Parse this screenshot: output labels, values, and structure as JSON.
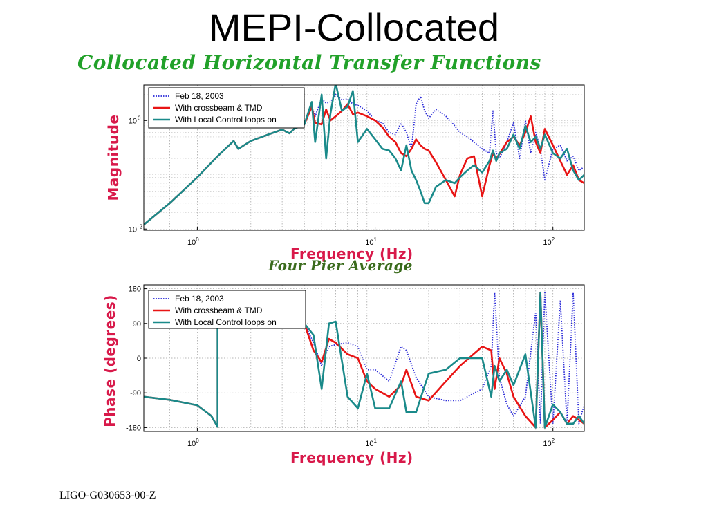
{
  "slide": {
    "title": "MEPI-Collocated",
    "subtitle": "Collocated Horizontal Transfer Functions",
    "mid_title": "Four Pier Average",
    "footer": "LIGO-G030653-00-Z"
  },
  "colors": {
    "feb": "#2a2ad8",
    "crossbeam": "#e81414",
    "local": "#1a8a8a",
    "axis_label": "#d8194a",
    "subtitle": "#22a12a"
  },
  "chart_data": [
    {
      "type": "line",
      "title": "",
      "xlabel": "Frequency (Hz)",
      "ylabel": "Magnitude",
      "xscale": "log",
      "yscale": "log",
      "xlim": [
        0.5,
        150
      ],
      "ylim": [
        0.0095,
        4.5
      ],
      "xticks": [
        {
          "v": 1,
          "base": "10",
          "exp": "0"
        },
        {
          "v": 10,
          "base": "10",
          "exp": "1"
        },
        {
          "v": 100,
          "base": "10",
          "exp": "2"
        }
      ],
      "yticks": [
        {
          "v": 1,
          "base": "10",
          "exp": "0"
        },
        {
          "v": 0.01,
          "base": "10",
          "exp": "-2"
        }
      ],
      "grid": true,
      "legend_position": "top-left",
      "series": [
        {
          "name": "Feb 18, 2003",
          "style": "dotted",
          "color": "#2a2ad8",
          "x": [
            0.5,
            0.7,
            1,
            1.3,
            1.6,
            1.7,
            2,
            2.5,
            3,
            3.3,
            3.5,
            4,
            4.4,
            4.6,
            5,
            5.3,
            5.6,
            6,
            6.5,
            7,
            7.5,
            8,
            9,
            10,
            11,
            12,
            13,
            14,
            15,
            16,
            17,
            18,
            19,
            20,
            22,
            25,
            28,
            30,
            33,
            36,
            40,
            44,
            46,
            48,
            50,
            55,
            60,
            65,
            70,
            75,
            80,
            85,
            90,
            100,
            110,
            120,
            130,
            140,
            150
          ],
          "y": [
            0.012,
            0.03,
            0.09,
            0.22,
            0.42,
            0.3,
            0.42,
            0.55,
            0.68,
            0.58,
            0.7,
            0.85,
            1.8,
            1.2,
            2.5,
            2.1,
            2.2,
            3.0,
            2.4,
            2.5,
            2.0,
            1.9,
            1.5,
            1.0,
            0.9,
            0.6,
            0.55,
            0.9,
            0.6,
            0.3,
            2.0,
            2.8,
            1.5,
            1.1,
            1.6,
            1.2,
            0.8,
            0.6,
            0.5,
            0.4,
            0.3,
            0.25,
            1.5,
            0.25,
            0.2,
            0.4,
            0.9,
            0.2,
            1.0,
            0.25,
            0.6,
            0.3,
            0.08,
            0.3,
            0.35,
            0.18,
            0.22,
            0.12,
            0.14
          ]
        },
        {
          "name": "With crossbeam & TMD",
          "style": "solid",
          "color": "#e81414",
          "x": [
            0.5,
            0.7,
            1,
            1.3,
            1.6,
            1.7,
            2,
            2.5,
            3,
            3.3,
            3.5,
            4,
            4.4,
            4.6,
            5,
            5.3,
            5.6,
            6,
            6.5,
            7,
            7.5,
            8,
            9,
            10,
            11,
            12,
            13,
            14,
            15,
            16,
            17,
            18,
            19,
            20,
            22,
            25,
            28,
            30,
            33,
            36,
            40,
            44,
            46,
            48,
            50,
            55,
            60,
            65,
            70,
            75,
            80,
            85,
            90,
            100,
            110,
            120,
            130,
            140,
            150
          ],
          "y": [
            0.012,
            0.03,
            0.09,
            0.22,
            0.42,
            0.3,
            0.42,
            0.55,
            0.68,
            0.58,
            0.7,
            0.85,
            1.8,
            0.9,
            0.85,
            1.6,
            1.0,
            1.2,
            1.5,
            2.0,
            1.3,
            1.4,
            1.2,
            1.0,
            0.75,
            0.5,
            0.4,
            0.25,
            0.22,
            0.3,
            0.45,
            0.35,
            0.3,
            0.28,
            0.17,
            0.08,
            0.04,
            0.1,
            0.2,
            0.22,
            0.04,
            0.15,
            0.25,
            0.2,
            0.24,
            0.4,
            0.5,
            0.35,
            0.6,
            1.2,
            0.4,
            0.25,
            0.7,
            0.35,
            0.18,
            0.1,
            0.15,
            0.08,
            0.07
          ]
        },
        {
          "name": "With Local Control loops on",
          "style": "solid",
          "color": "#1a8a8a",
          "x": [
            0.5,
            0.7,
            1,
            1.3,
            1.6,
            1.7,
            2,
            2.5,
            3,
            3.3,
            3.5,
            4,
            4.4,
            4.6,
            5,
            5.3,
            5.6,
            6,
            6.5,
            7,
            7.5,
            8,
            9,
            10,
            11,
            12,
            13,
            14,
            15,
            16,
            17,
            18,
            19,
            20,
            22,
            25,
            28,
            30,
            33,
            36,
            40,
            44,
            46,
            48,
            50,
            55,
            60,
            65,
            70,
            75,
            80,
            85,
            90,
            100,
            110,
            120,
            130,
            140,
            150
          ],
          "y": [
            0.012,
            0.03,
            0.09,
            0.22,
            0.42,
            0.3,
            0.42,
            0.55,
            0.68,
            0.58,
            0.7,
            0.85,
            2.2,
            0.4,
            3.0,
            0.2,
            1.3,
            4.8,
            1.5,
            1.8,
            3.5,
            0.4,
            0.7,
            0.45,
            0.3,
            0.28,
            0.2,
            0.12,
            0.35,
            0.12,
            0.08,
            0.05,
            0.03,
            0.03,
            0.06,
            0.08,
            0.07,
            0.09,
            0.12,
            0.15,
            0.11,
            0.18,
            0.28,
            0.18,
            0.25,
            0.3,
            0.55,
            0.3,
            0.8,
            0.4,
            0.5,
            0.3,
            0.55,
            0.25,
            0.2,
            0.3,
            0.12,
            0.08,
            0.1
          ]
        }
      ]
    },
    {
      "type": "line",
      "title": "",
      "xlabel": "Frequency (Hz)",
      "ylabel": "Phase (degrees)",
      "xscale": "log",
      "yscale": "linear",
      "xlim": [
        0.5,
        150
      ],
      "ylim": [
        -190,
        190
      ],
      "xticks": [
        {
          "v": 1,
          "base": "10",
          "exp": "0"
        },
        {
          "v": 10,
          "base": "10",
          "exp": "1"
        },
        {
          "v": 100,
          "base": "10",
          "exp": "2"
        }
      ],
      "yticks": [
        {
          "v": 180,
          "label": "180"
        },
        {
          "v": 90,
          "label": "90"
        },
        {
          "v": 0,
          "label": "0"
        },
        {
          "v": -90,
          "label": "-90"
        },
        {
          "v": -180,
          "label": "-180"
        }
      ],
      "grid": true,
      "legend_position": "top-left",
      "series": [
        {
          "name": "Feb 18, 2003",
          "style": "dotted",
          "color": "#2a2ad8",
          "x": [
            0.5,
            0.7,
            1,
            1.2,
            1.3,
            1.3,
            1.6,
            2,
            3,
            4,
            4.5,
            5,
            5.5,
            6,
            7,
            8,
            9,
            10,
            12,
            14,
            15,
            17,
            20,
            25,
            30,
            40,
            45,
            47,
            50,
            55,
            60,
            70,
            80,
            85,
            90,
            100,
            110,
            120,
            130,
            140,
            150
          ],
          "y": [
            -100,
            -108,
            -122,
            -150,
            -178,
            170,
            110,
            98,
            95,
            90,
            40,
            -20,
            30,
            35,
            40,
            30,
            -30,
            -30,
            -60,
            30,
            20,
            -50,
            -100,
            -110,
            -110,
            -80,
            -20,
            170,
            -50,
            -120,
            -150,
            -100,
            120,
            -170,
            170,
            -170,
            150,
            -170,
            170,
            -170,
            -120
          ]
        },
        {
          "name": "With crossbeam & TMD",
          "style": "solid",
          "color": "#e81414",
          "x": [
            0.5,
            0.7,
            1,
            1.2,
            1.3,
            1.3,
            1.6,
            2,
            3,
            4,
            4.5,
            5,
            5.5,
            6,
            7,
            8,
            9,
            10,
            12,
            14,
            15,
            17,
            20,
            25,
            30,
            40,
            45,
            47,
            50,
            55,
            60,
            70,
            80,
            85,
            90,
            100,
            110,
            120,
            130,
            140,
            150
          ],
          "y": [
            -100,
            -108,
            -122,
            -150,
            -178,
            170,
            110,
            98,
            95,
            90,
            20,
            -10,
            50,
            40,
            10,
            0,
            -60,
            -80,
            -100,
            -70,
            -30,
            -100,
            -110,
            -60,
            -20,
            30,
            20,
            -80,
            0,
            -40,
            -100,
            -150,
            -180,
            170,
            -180,
            -160,
            -140,
            -170,
            -150,
            -160,
            -170
          ]
        },
        {
          "name": "With Local Control loops on",
          "style": "solid",
          "color": "#1a8a8a",
          "x": [
            0.5,
            0.7,
            1,
            1.2,
            1.3,
            1.3,
            1.6,
            2,
            3,
            4,
            4.5,
            5,
            5.5,
            6,
            7,
            8,
            9,
            10,
            12,
            14,
            15,
            17,
            20,
            25,
            30,
            40,
            45,
            47,
            50,
            55,
            60,
            70,
            80,
            85,
            90,
            100,
            110,
            120,
            130,
            140,
            150
          ],
          "y": [
            -100,
            -108,
            -122,
            -150,
            -178,
            170,
            110,
            98,
            95,
            90,
            60,
            -80,
            90,
            95,
            -100,
            -130,
            -40,
            -130,
            -130,
            -60,
            -140,
            -140,
            -40,
            -30,
            0,
            0,
            -100,
            -20,
            -60,
            -30,
            -70,
            10,
            -180,
            170,
            -180,
            -120,
            -140,
            -170,
            -170,
            -150,
            -170
          ]
        }
      ]
    }
  ]
}
